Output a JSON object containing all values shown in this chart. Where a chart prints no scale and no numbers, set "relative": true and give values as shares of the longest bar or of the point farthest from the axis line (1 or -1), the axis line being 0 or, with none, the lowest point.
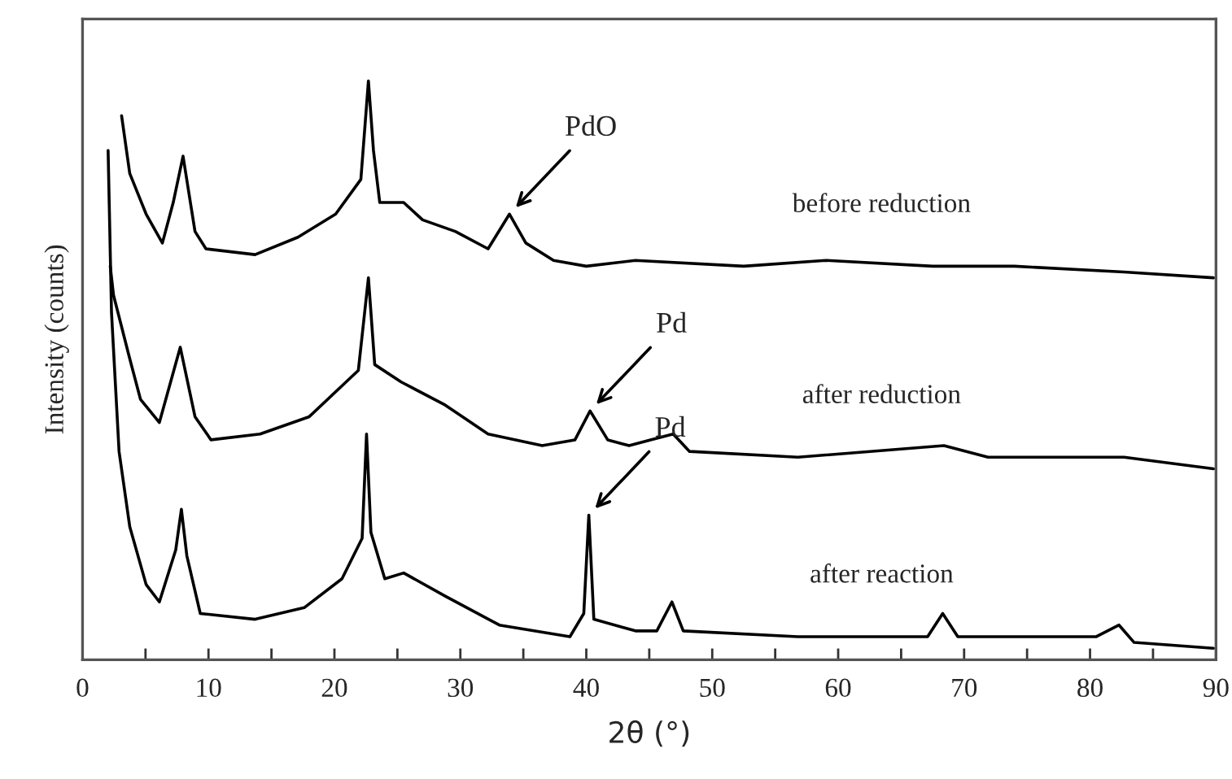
{
  "chart_data": {
    "type": "line",
    "relative": true,
    "xlabel": "2θ (°)",
    "ylabel": "Intensity (counts)",
    "xlim": [
      0,
      90
    ],
    "xticks": [
      0,
      {
        "value": 5,
        "label": null
      },
      10,
      {
        "value": 15,
        "label": null
      },
      20,
      {
        "value": 25,
        "label": null
      },
      30,
      {
        "value": 35,
        "label": null
      },
      40,
      {
        "value": 45,
        "label": null
      },
      50,
      {
        "value": 55,
        "label": null
      },
      60,
      {
        "value": 65,
        "label": null
      },
      70,
      {
        "value": 75,
        "label": null
      },
      80,
      {
        "value": 85,
        "label": null
      },
      90
    ],
    "grid": false,
    "legend": false,
    "marker": "none",
    "line_style": "solid",
    "series": [
      {
        "name": "before reduction",
        "color": "#000000",
        "x": [
          3.1,
          3.75,
          5.05,
          6.34,
          7.2,
          7.98,
          8.93,
          9.8,
          13.7,
          17.1,
          20.1,
          22.1,
          22.7,
          23.1,
          23.6,
          25.5,
          27.0,
          29.6,
          32.2,
          33.9,
          35.2,
          37.4,
          40.0,
          43.9,
          52.5,
          59.0,
          67.5,
          74.0,
          82.7,
          89.8
        ],
        "values": [
          0.94,
          0.84,
          0.77,
          0.72,
          0.79,
          0.87,
          0.74,
          0.71,
          0.7,
          0.73,
          0.77,
          0.83,
          1.0,
          0.88,
          0.79,
          0.79,
          0.76,
          0.74,
          0.71,
          0.77,
          0.72,
          0.69,
          0.68,
          0.69,
          0.68,
          0.69,
          0.68,
          0.68,
          0.67,
          0.66
        ]
      },
      {
        "name": "after reduction",
        "color": "#000000",
        "x": [
          2.2,
          2.46,
          3.75,
          4.6,
          6.1,
          7.76,
          8.93,
          10.2,
          14.1,
          18.0,
          21.9,
          22.7,
          23.2,
          25.3,
          28.8,
          32.2,
          36.5,
          39.1,
          40.3,
          41.7,
          43.4,
          45.1,
          46.9,
          48.2,
          56.8,
          68.4,
          71.9,
          82.7,
          89.8
        ],
        "values": [
          0.68,
          0.63,
          0.52,
          0.45,
          0.41,
          0.54,
          0.42,
          0.38,
          0.39,
          0.42,
          0.5,
          0.66,
          0.51,
          0.48,
          0.44,
          0.39,
          0.37,
          0.38,
          0.43,
          0.38,
          0.37,
          0.38,
          0.39,
          0.36,
          0.35,
          0.37,
          0.35,
          0.35,
          0.33
        ]
      },
      {
        "name": "after reaction",
        "color": "#000000",
        "x": [
          2.03,
          2.3,
          2.9,
          3.75,
          5.05,
          6.1,
          7.4,
          7.85,
          8.28,
          9.35,
          13.7,
          17.6,
          20.6,
          22.2,
          22.55,
          22.9,
          24.0,
          25.5,
          28.8,
          33.1,
          38.7,
          39.8,
          40.2,
          40.6,
          43.9,
          45.6,
          46.8,
          47.7,
          56.8,
          67.1,
          68.3,
          69.5,
          80.5,
          82.3,
          83.5,
          89.8
        ],
        "values": [
          0.88,
          0.6,
          0.36,
          0.23,
          0.13,
          0.1,
          0.19,
          0.26,
          0.18,
          0.08,
          0.07,
          0.09,
          0.14,
          0.21,
          0.39,
          0.22,
          0.14,
          0.15,
          0.11,
          0.06,
          0.04,
          0.08,
          0.25,
          0.07,
          0.05,
          0.05,
          0.1,
          0.05,
          0.04,
          0.04,
          0.08,
          0.04,
          0.04,
          0.06,
          0.03,
          0.02
        ]
      }
    ],
    "annotations": [
      {
        "text": "PdO",
        "x": 33.9,
        "y": 0.77
      },
      {
        "text": "Pd",
        "x": 40.3,
        "y": 0.43
      },
      {
        "text": "Pd",
        "x": 40.2,
        "y": 0.25
      }
    ]
  }
}
